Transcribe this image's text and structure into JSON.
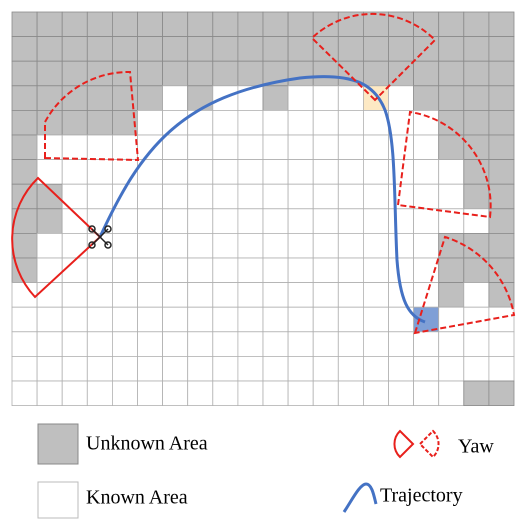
{
  "legend": {
    "unknown": "Unknown Area",
    "known": "Known Area",
    "yaw": "Yaw",
    "trajectory": "Trajectory"
  }
}
